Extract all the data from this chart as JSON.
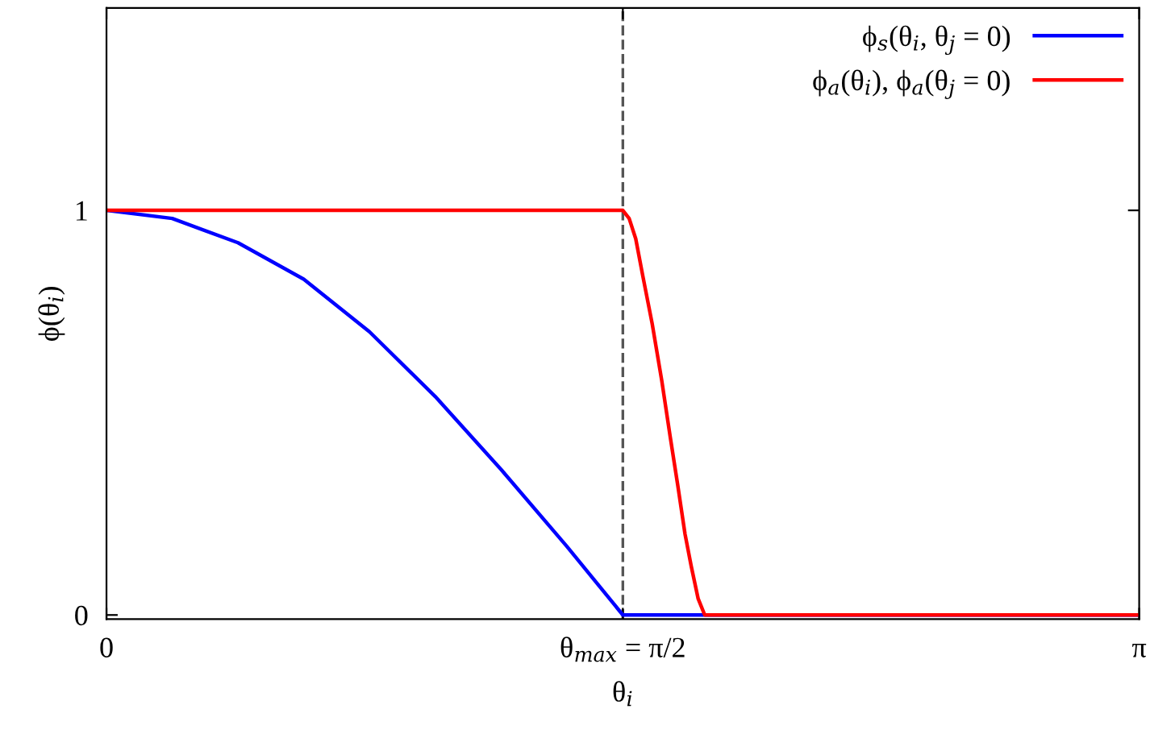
{
  "chart_data": {
    "type": "line",
    "xlabel": "θ$_{i}$",
    "ylabel": "ϕ(θ$_{i}$)",
    "xlim": [
      0,
      3.1416
    ],
    "xticks": [
      {
        "value": 0,
        "label": "0"
      },
      {
        "value": 1.5708,
        "label": "θ$_{max}$ = π/2"
      },
      {
        "value": 3.1416,
        "label": "π"
      }
    ],
    "ylim": [
      -0.01,
      1.5
    ],
    "yticks": [
      0,
      1
    ],
    "series": [
      {
        "name": "ϕ$_{s}$(θ$_{i}$, θ$_{j}$ = 0)",
        "color": "#0000ff",
        "x": [
          0,
          0.2,
          0.4,
          0.6,
          0.8,
          1.0,
          1.2,
          1.4,
          1.5708,
          3.1416
        ],
        "values": [
          1,
          0.98,
          0.92,
          0.83,
          0.7,
          0.54,
          0.36,
          0.17,
          0,
          0
        ]
      },
      {
        "name": "ϕ$_{a}$(θ$_{i}$), ϕ$_{a}$(θ$_{j}$ = 0)",
        "color": "#ff0000",
        "x": [
          0,
          1.5708,
          1.59,
          1.61,
          1.631,
          1.66,
          1.689,
          1.715,
          1.738,
          1.76,
          1.779,
          1.8,
          1.82,
          3.1416
        ],
        "values": [
          1,
          1,
          0.98,
          0.93,
          0.84,
          0.72,
          0.58,
          0.44,
          0.32,
          0.2,
          0.12,
          0.04,
          0,
          0
        ]
      }
    ],
    "ref_lines": [
      {
        "axis": "x",
        "value": 1.5708,
        "color": "#555555",
        "line_style": "dashed"
      }
    ],
    "legend": "top right",
    "grid": false,
    "marker": "none",
    "line_style": "solid"
  }
}
